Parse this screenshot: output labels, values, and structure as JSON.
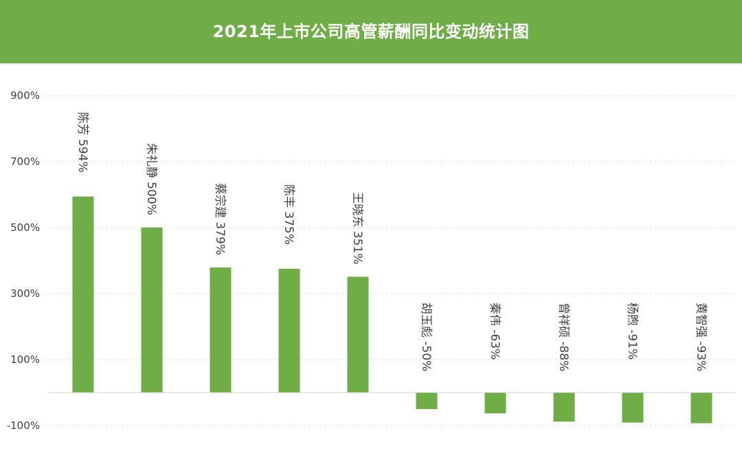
{
  "chart_data": {
    "type": "bar",
    "title": "2021年上市公司高管薪酬同比变动统计图",
    "categories": [
      "陈芳",
      "朱礼静",
      "蔡宗建",
      "陈丰",
      "王晓东",
      "胡玉彪",
      "秦伟",
      "曾祥硕",
      "杨煦",
      "黄智强"
    ],
    "values": [
      594,
      500,
      379,
      375,
      351,
      -50,
      -63,
      -88,
      -91,
      -93
    ],
    "unit": "%",
    "ylim": [
      -100,
      900
    ],
    "yticks": [
      900,
      700,
      500,
      300,
      100,
      -100
    ],
    "ytick_labels": [
      "900%",
      "700%",
      "500%",
      "300%",
      "100%",
      "-100%"
    ],
    "grid": true,
    "colors": {
      "bar": "#6fad46",
      "header": "#6fad46"
    }
  }
}
